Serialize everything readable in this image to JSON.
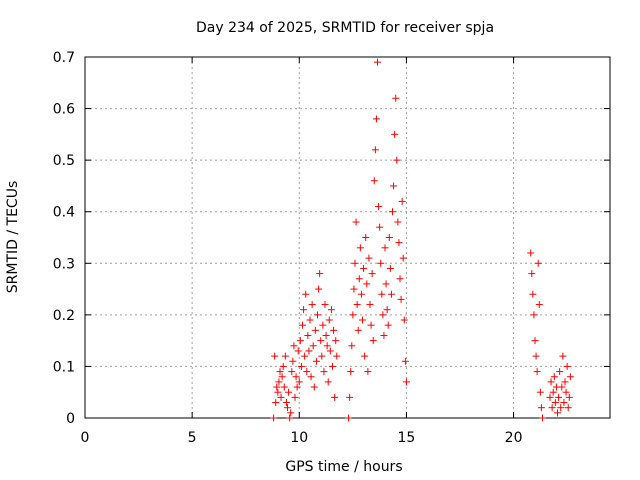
{
  "chart_data": {
    "type": "scatter",
    "title": "Day 234 of 2025, SRMTID for receiver spja",
    "xlabel": "GPS time / hours",
    "ylabel": "SRMTID / TECUs",
    "xlim": [
      0,
      24.5
    ],
    "ylim": [
      0,
      0.7
    ],
    "xticks": [
      0,
      5,
      10,
      15,
      20
    ],
    "xtick_labels": [
      "0",
      "5",
      "10",
      "15",
      "20"
    ],
    "yticks": [
      0,
      0.1,
      0.2,
      0.3,
      0.4,
      0.5,
      0.6,
      0.7
    ],
    "ytick_labels": [
      "0",
      "0.1",
      "0.2",
      "0.3",
      "0.4",
      "0.5",
      "0.6",
      "0.7"
    ],
    "grid": true,
    "marker": "+",
    "marker_color": "#ff0000",
    "series": [
      {
        "name": "SRMTID",
        "points": [
          [
            8.8,
            0.0
          ],
          [
            8.85,
            0.12
          ],
          [
            8.9,
            0.03
          ],
          [
            8.95,
            0.06
          ],
          [
            9.0,
            0.05
          ],
          [
            9.05,
            0.07
          ],
          [
            9.1,
            0.09
          ],
          [
            9.15,
            0.04
          ],
          [
            9.2,
            0.08
          ],
          [
            9.25,
            0.1
          ],
          [
            9.3,
            0.06
          ],
          [
            9.35,
            0.12
          ],
          [
            9.4,
            0.03
          ],
          [
            9.45,
            0.02
          ],
          [
            9.5,
            0.05
          ],
          [
            9.55,
            0.0
          ],
          [
            9.6,
            0.01
          ],
          [
            9.65,
            0.09
          ],
          [
            9.7,
            0.11
          ],
          [
            9.75,
            0.14
          ],
          [
            9.8,
            0.04
          ],
          [
            9.85,
            0.08
          ],
          [
            9.9,
            0.06
          ],
          [
            9.95,
            0.13
          ],
          [
            10.0,
            0.07
          ],
          [
            10.05,
            0.15
          ],
          [
            10.1,
            0.1
          ],
          [
            10.15,
            0.18
          ],
          [
            10.2,
            0.21
          ],
          [
            10.25,
            0.12
          ],
          [
            10.3,
            0.24
          ],
          [
            10.35,
            0.09
          ],
          [
            10.4,
            0.16
          ],
          [
            10.45,
            0.13
          ],
          [
            10.5,
            0.19
          ],
          [
            10.55,
            0.08
          ],
          [
            10.6,
            0.22
          ],
          [
            10.65,
            0.14
          ],
          [
            10.7,
            0.06
          ],
          [
            10.75,
            0.17
          ],
          [
            10.8,
            0.11
          ],
          [
            10.85,
            0.2
          ],
          [
            10.9,
            0.25
          ],
          [
            10.95,
            0.28
          ],
          [
            11.0,
            0.15
          ],
          [
            11.05,
            0.12
          ],
          [
            11.1,
            0.18
          ],
          [
            11.15,
            0.09
          ],
          [
            11.2,
            0.22
          ],
          [
            11.25,
            0.16
          ],
          [
            11.3,
            0.14
          ],
          [
            11.35,
            0.07
          ],
          [
            11.4,
            0.19
          ],
          [
            11.45,
            0.13
          ],
          [
            11.5,
            0.21
          ],
          [
            11.55,
            0.1
          ],
          [
            11.6,
            0.17
          ],
          [
            11.65,
            0.04
          ],
          [
            11.7,
            0.15
          ],
          [
            11.75,
            0.12
          ],
          [
            12.3,
            0.0
          ],
          [
            12.35,
            0.04
          ],
          [
            12.4,
            0.09
          ],
          [
            12.45,
            0.14
          ],
          [
            12.5,
            0.2
          ],
          [
            12.55,
            0.25
          ],
          [
            12.6,
            0.3
          ],
          [
            12.65,
            0.38
          ],
          [
            12.7,
            0.22
          ],
          [
            12.75,
            0.17
          ],
          [
            12.8,
            0.27
          ],
          [
            12.85,
            0.33
          ],
          [
            12.9,
            0.24
          ],
          [
            12.95,
            0.19
          ],
          [
            13.0,
            0.29
          ],
          [
            13.05,
            0.12
          ],
          [
            13.1,
            0.35
          ],
          [
            13.15,
            0.26
          ],
          [
            13.2,
            0.09
          ],
          [
            13.25,
            0.31
          ],
          [
            13.3,
            0.22
          ],
          [
            13.35,
            0.18
          ],
          [
            13.4,
            0.28
          ],
          [
            13.45,
            0.15
          ],
          [
            13.5,
            0.46
          ],
          [
            13.55,
            0.52
          ],
          [
            13.6,
            0.58
          ],
          [
            13.65,
            0.69
          ],
          [
            13.7,
            0.41
          ],
          [
            13.75,
            0.37
          ],
          [
            13.8,
            0.3
          ],
          [
            13.85,
            0.24
          ],
          [
            13.9,
            0.2
          ],
          [
            13.95,
            0.16
          ],
          [
            14.0,
            0.33
          ],
          [
            14.05,
            0.26
          ],
          [
            14.1,
            0.21
          ],
          [
            14.15,
            0.18
          ],
          [
            14.2,
            0.35
          ],
          [
            14.25,
            0.29
          ],
          [
            14.3,
            0.24
          ],
          [
            14.35,
            0.4
          ],
          [
            14.4,
            0.45
          ],
          [
            14.45,
            0.55
          ],
          [
            14.5,
            0.62
          ],
          [
            14.55,
            0.5
          ],
          [
            14.6,
            0.38
          ],
          [
            14.65,
            0.34
          ],
          [
            14.7,
            0.27
          ],
          [
            14.75,
            0.23
          ],
          [
            14.8,
            0.42
          ],
          [
            14.85,
            0.31
          ],
          [
            14.9,
            0.19
          ],
          [
            14.95,
            0.11
          ],
          [
            15.0,
            0.07
          ],
          [
            20.8,
            0.32
          ],
          [
            20.85,
            0.28
          ],
          [
            20.9,
            0.24
          ],
          [
            20.95,
            0.2
          ],
          [
            21.0,
            0.15
          ],
          [
            21.05,
            0.12
          ],
          [
            21.1,
            0.09
          ],
          [
            21.15,
            0.3
          ],
          [
            21.2,
            0.22
          ],
          [
            21.25,
            0.05
          ],
          [
            21.3,
            0.02
          ],
          [
            21.35,
            0.0
          ],
          [
            21.7,
            0.04
          ],
          [
            21.75,
            0.07
          ],
          [
            21.8,
            0.02
          ],
          [
            21.85,
            0.05
          ],
          [
            21.9,
            0.08
          ],
          [
            21.95,
            0.03
          ],
          [
            22.0,
            0.06
          ],
          [
            22.05,
            0.01
          ],
          [
            22.1,
            0.04
          ],
          [
            22.15,
            0.09
          ],
          [
            22.2,
            0.02
          ],
          [
            22.25,
            0.06
          ],
          [
            22.3,
            0.12
          ],
          [
            22.35,
            0.03
          ],
          [
            22.4,
            0.07
          ],
          [
            22.45,
            0.05
          ],
          [
            22.5,
            0.1
          ],
          [
            22.55,
            0.02
          ],
          [
            22.6,
            0.04
          ],
          [
            22.65,
            0.08
          ]
        ]
      }
    ]
  }
}
